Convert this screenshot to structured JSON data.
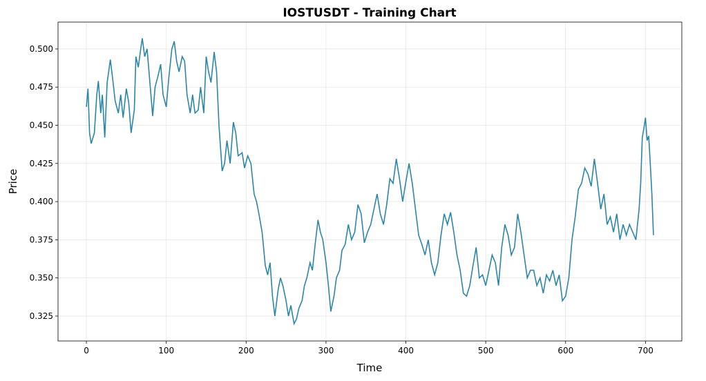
{
  "chart_data": {
    "type": "line",
    "title": "IOSTUSDT - Training Chart",
    "x_label": "Time",
    "y_label": "Price",
    "xlim": [
      -35.5,
      745.5
    ],
    "ylim": [
      0.3087,
      0.5176
    ],
    "xticks": [
      0,
      100,
      200,
      300,
      400,
      500,
      600,
      700
    ],
    "yticks": [
      {
        "value": 0.325,
        "label": "0.325"
      },
      {
        "value": 0.35,
        "label": "0.350"
      },
      {
        "value": 0.375,
        "label": "0.375"
      },
      {
        "value": 0.4,
        "label": "0.400"
      },
      {
        "value": 0.425,
        "label": "0.425"
      },
      {
        "value": 0.45,
        "label": "0.450"
      },
      {
        "value": 0.475,
        "label": "0.475"
      },
      {
        "value": 0.5,
        "label": "0.500"
      }
    ],
    "grid": true,
    "series": [
      {
        "color": "#2a86a8",
        "x": [
          0,
          2,
          4,
          6,
          10,
          13,
          15,
          18,
          20,
          23,
          26,
          30,
          33,
          36,
          40,
          43,
          46,
          50,
          53,
          56,
          60,
          62,
          65,
          68,
          70,
          73,
          76,
          80,
          83,
          86,
          90,
          93,
          96,
          100,
          103,
          107,
          110,
          113,
          116,
          120,
          123,
          126,
          130,
          133,
          136,
          140,
          143,
          147,
          150,
          153,
          156,
          160,
          163,
          166,
          170,
          173,
          176,
          180,
          184,
          187,
          190,
          195,
          198,
          202,
          206,
          210,
          213,
          216,
          220,
          224,
          227,
          230,
          233,
          236,
          240,
          243,
          246,
          250,
          253,
          256,
          260,
          263,
          266,
          270,
          273,
          276,
          280,
          283,
          286,
          290,
          293,
          296,
          300,
          303,
          306,
          310,
          313,
          317,
          320,
          324,
          328,
          332,
          336,
          340,
          344,
          348,
          352,
          356,
          360,
          364,
          368,
          372,
          376,
          380,
          384,
          388,
          392,
          396,
          400,
          404,
          408,
          412,
          416,
          420,
          424,
          428,
          432,
          436,
          440,
          444,
          448,
          452,
          456,
          460,
          464,
          468,
          472,
          476,
          480,
          484,
          488,
          492,
          496,
          500,
          504,
          508,
          512,
          516,
          520,
          524,
          528,
          532,
          536,
          540,
          544,
          548,
          552,
          556,
          560,
          564,
          568,
          572,
          576,
          580,
          584,
          588,
          592,
          596,
          600,
          604,
          608,
          612,
          616,
          620,
          624,
          628,
          632,
          636,
          640,
          644,
          648,
          652,
          656,
          660,
          664,
          668,
          672,
          676,
          680,
          684,
          688,
          692,
          694,
          696,
          698,
          700,
          702,
          704,
          706,
          708,
          710
        ],
        "values": [
          0.462,
          0.474,
          0.445,
          0.438,
          0.445,
          0.47,
          0.479,
          0.458,
          0.47,
          0.442,
          0.478,
          0.493,
          0.48,
          0.466,
          0.458,
          0.47,
          0.455,
          0.474,
          0.465,
          0.445,
          0.46,
          0.495,
          0.488,
          0.5,
          0.507,
          0.495,
          0.5,
          0.475,
          0.456,
          0.475,
          0.483,
          0.49,
          0.47,
          0.462,
          0.48,
          0.5,
          0.505,
          0.492,
          0.485,
          0.495,
          0.492,
          0.47,
          0.458,
          0.47,
          0.458,
          0.46,
          0.475,
          0.458,
          0.495,
          0.485,
          0.478,
          0.498,
          0.485,
          0.45,
          0.42,
          0.425,
          0.44,
          0.425,
          0.452,
          0.445,
          0.43,
          0.432,
          0.422,
          0.43,
          0.425,
          0.405,
          0.4,
          0.392,
          0.38,
          0.358,
          0.352,
          0.36,
          0.338,
          0.325,
          0.342,
          0.35,
          0.345,
          0.335,
          0.325,
          0.332,
          0.32,
          0.323,
          0.33,
          0.335,
          0.345,
          0.35,
          0.36,
          0.355,
          0.37,
          0.388,
          0.38,
          0.375,
          0.36,
          0.345,
          0.328,
          0.338,
          0.35,
          0.355,
          0.368,
          0.372,
          0.385,
          0.375,
          0.38,
          0.398,
          0.392,
          0.373,
          0.38,
          0.385,
          0.395,
          0.405,
          0.392,
          0.385,
          0.398,
          0.415,
          0.412,
          0.428,
          0.415,
          0.4,
          0.413,
          0.425,
          0.412,
          0.395,
          0.378,
          0.372,
          0.365,
          0.375,
          0.36,
          0.352,
          0.36,
          0.378,
          0.392,
          0.385,
          0.393,
          0.38,
          0.365,
          0.355,
          0.34,
          0.338,
          0.345,
          0.358,
          0.37,
          0.35,
          0.352,
          0.345,
          0.355,
          0.365,
          0.36,
          0.345,
          0.37,
          0.385,
          0.378,
          0.365,
          0.37,
          0.392,
          0.38,
          0.365,
          0.35,
          0.355,
          0.355,
          0.345,
          0.35,
          0.34,
          0.352,
          0.348,
          0.355,
          0.345,
          0.352,
          0.335,
          0.338,
          0.35,
          0.375,
          0.39,
          0.408,
          0.412,
          0.422,
          0.418,
          0.41,
          0.428,
          0.412,
          0.395,
          0.405,
          0.385,
          0.39,
          0.38,
          0.392,
          0.375,
          0.385,
          0.378,
          0.385,
          0.38,
          0.375,
          0.395,
          0.412,
          0.442,
          0.448,
          0.455,
          0.44,
          0.443,
          0.425,
          0.405,
          0.378
        ]
      }
    ]
  }
}
